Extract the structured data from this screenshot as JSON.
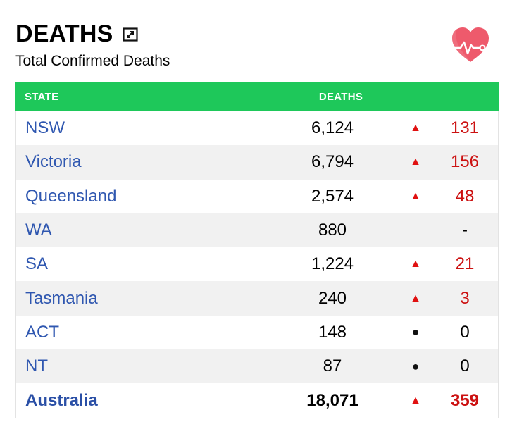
{
  "header": {
    "title": "DEATHS",
    "subtitle": "Total Confirmed Deaths"
  },
  "table": {
    "columns": {
      "state": "STATE",
      "deaths": "DEATHS"
    },
    "rows": [
      {
        "state": "NSW",
        "deaths": "6,124",
        "indicator": "▲",
        "change": "131"
      },
      {
        "state": "Victoria",
        "deaths": "6,794",
        "indicator": "▲",
        "change": "156"
      },
      {
        "state": "Queensland",
        "deaths": "2,574",
        "indicator": "▲",
        "change": "48"
      },
      {
        "state": "WA",
        "deaths": "880",
        "indicator": "",
        "change": "-"
      },
      {
        "state": "SA",
        "deaths": "1,224",
        "indicator": "▲",
        "change": "21"
      },
      {
        "state": "Tasmania",
        "deaths": "240",
        "indicator": "▲",
        "change": "3"
      },
      {
        "state": "ACT",
        "deaths": "148",
        "indicator": "●",
        "change": "0"
      },
      {
        "state": "NT",
        "deaths": "87",
        "indicator": "●",
        "change": "0"
      }
    ],
    "total": {
      "state": "Australia",
      "deaths": "18,071",
      "indicator": "▲",
      "change": "359"
    }
  },
  "colors": {
    "header_bg": "#1ec85a",
    "state_link": "#2f57b0",
    "increase": "#cc1111",
    "row_alt": "#f1f1f1"
  },
  "icons": {
    "expand": "expand-icon",
    "heart": "heart-pulse-icon"
  }
}
